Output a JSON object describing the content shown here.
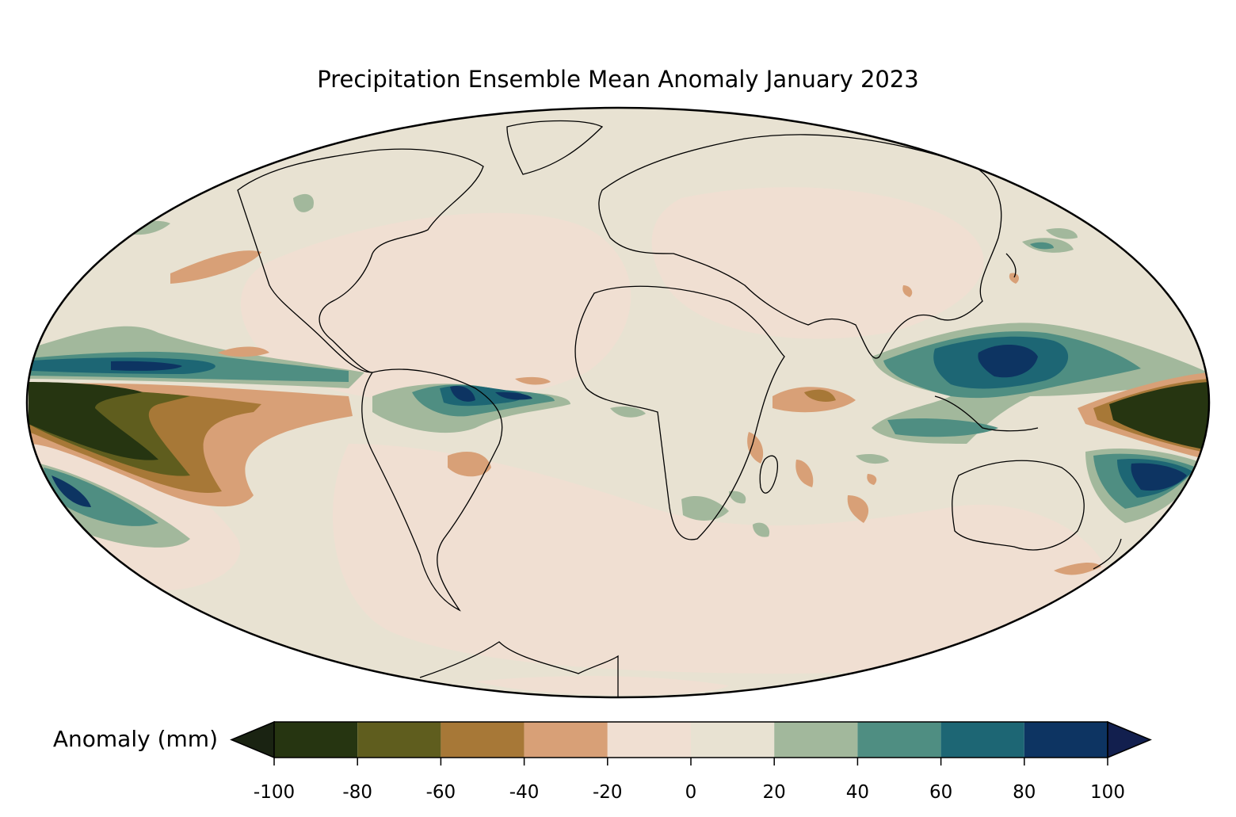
{
  "title": "Precipitation Ensemble Mean Anomaly January 2023",
  "projection": "Mollweide",
  "colorbar": {
    "label": "Anomaly (mm)",
    "ticks": [
      "-100",
      "-80",
      "-60",
      "-40",
      "-20",
      "0",
      "20",
      "40",
      "60",
      "80",
      "100"
    ],
    "bins": [
      {
        "from": -100,
        "to": -80,
        "color": "#263511"
      },
      {
        "from": -80,
        "to": -60,
        "color": "#5f5d1e"
      },
      {
        "from": -60,
        "to": -40,
        "color": "#a77837"
      },
      {
        "from": -40,
        "to": -20,
        "color": "#d8a077"
      },
      {
        "from": -20,
        "to": 0,
        "color": "#f0dfd2"
      },
      {
        "from": 0,
        "to": 20,
        "color": "#e8e2d2"
      },
      {
        "from": 20,
        "to": 40,
        "color": "#a2b89c"
      },
      {
        "from": 40,
        "to": 60,
        "color": "#4f8e82"
      },
      {
        "from": 60,
        "to": 80,
        "color": "#1d6674"
      },
      {
        "from": 80,
        "to": 100,
        "color": "#0d3462"
      }
    ],
    "extend_low_color": "#1a2312",
    "extend_high_color": "#121f4e"
  },
  "chart_data": {
    "type": "heatmap",
    "variable": "precipitation anomaly",
    "units": "mm",
    "period": "January 2023",
    "value_range": [
      -100,
      100
    ],
    "features": [
      {
        "region": "Central/Eastern Equatorial Pacific",
        "anomaly_range": [
          -100,
          -80
        ]
      },
      {
        "region": "Western Pacific (Maritime Continent, Philippines)",
        "anomaly_range": [
          80,
          100
        ]
      },
      {
        "region": "Southwest Pacific near Australia/New Caledonia",
        "anomaly_range": [
          80,
          100
        ]
      },
      {
        "region": "Far western tropical Pacific (north of New Guinea)",
        "anomaly_range": [
          -100,
          -80
        ]
      },
      {
        "region": "Northern South America / Amazon mouth",
        "anomaly_range": [
          80,
          100
        ]
      },
      {
        "region": "Central North Pacific ITCZ band",
        "anomaly_range": [
          80,
          100
        ]
      },
      {
        "region": "Southeast Pacific",
        "anomaly_range": [
          80,
          100
        ]
      },
      {
        "region": "Equatorial Indian Ocean",
        "anomaly_range": [
          -60,
          -40
        ]
      },
      {
        "region": "Southern Africa",
        "anomaly_range": [
          20,
          40
        ]
      },
      {
        "region": "Mozambique Channel",
        "anomaly_range": [
          -60,
          -40
        ]
      }
    ]
  }
}
